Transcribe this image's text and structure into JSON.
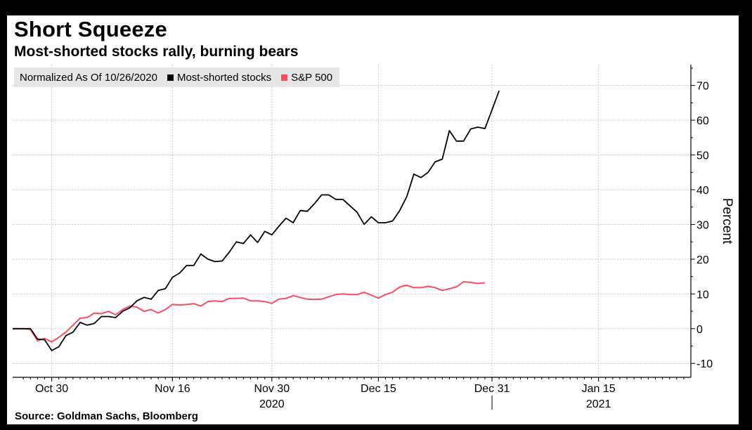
{
  "chart_data": {
    "type": "line",
    "title": "Short Squeeze",
    "subtitle": "Most-shorted stocks rally, burning bears",
    "legend_note": "Normalized As Of 10/26/2020",
    "ylabel": "Percent",
    "ylim": [
      -14,
      76
    ],
    "yticks": [
      -10,
      0,
      10,
      20,
      30,
      40,
      50,
      60,
      70
    ],
    "x_ticks": [
      {
        "day": 4,
        "label": "Oct 30"
      },
      {
        "day": 21,
        "label": "Nov 16"
      },
      {
        "day": 35,
        "label": "Nov 30"
      },
      {
        "day": 50,
        "label": "Dec 15"
      },
      {
        "day": 66,
        "label": "Dec 31"
      },
      {
        "day": 81,
        "label": "Jan 15"
      }
    ],
    "year_labels": [
      {
        "day": 35,
        "label": "2020"
      },
      {
        "day": 81,
        "label": "2021"
      }
    ],
    "year_divider_day": 66,
    "xlim": [
      -1.5,
      94
    ],
    "series": [
      {
        "name": "Most-shorted stocks",
        "color": "#000000",
        "points": [
          [
            -1.5,
            0
          ],
          [
            0,
            0
          ],
          [
            1,
            0
          ],
          [
            2,
            -3
          ],
          [
            3,
            -3.2
          ],
          [
            4,
            -6.3
          ],
          [
            5,
            -5.2
          ],
          [
            6,
            -2
          ],
          [
            7,
            -1
          ],
          [
            8,
            1.8
          ],
          [
            9,
            1
          ],
          [
            10,
            1.5
          ],
          [
            11,
            3.5
          ],
          [
            12,
            3.5
          ],
          [
            13,
            3.2
          ],
          [
            14,
            5
          ],
          [
            15,
            6
          ],
          [
            16,
            8
          ],
          [
            17,
            9
          ],
          [
            18,
            8.5
          ],
          [
            19,
            11
          ],
          [
            20,
            11.5
          ],
          [
            21,
            14.8
          ],
          [
            22,
            16
          ],
          [
            23,
            18.2
          ],
          [
            24,
            18.2
          ],
          [
            25,
            21.5
          ],
          [
            26,
            20
          ],
          [
            27,
            19.3
          ],
          [
            28,
            19.5
          ],
          [
            29,
            22
          ],
          [
            30,
            25
          ],
          [
            31,
            24.5
          ],
          [
            32,
            27
          ],
          [
            33,
            24.8
          ],
          [
            34,
            28
          ],
          [
            35,
            27
          ],
          [
            36,
            29.5
          ],
          [
            37,
            31.8
          ],
          [
            38,
            30.5
          ],
          [
            39,
            34
          ],
          [
            40,
            33.8
          ],
          [
            41,
            36
          ],
          [
            42,
            38.5
          ],
          [
            43,
            38.5
          ],
          [
            44,
            37.2
          ],
          [
            45,
            37.2
          ],
          [
            47,
            33.5
          ],
          [
            48,
            30
          ],
          [
            49,
            32.2
          ],
          [
            50,
            30.5
          ],
          [
            51,
            30.5
          ],
          [
            52,
            31
          ],
          [
            53,
            34
          ],
          [
            54,
            38
          ],
          [
            55,
            44.5
          ],
          [
            56,
            43.5
          ],
          [
            57,
            45
          ],
          [
            58,
            48
          ],
          [
            59,
            48.8
          ],
          [
            60,
            57
          ],
          [
            61,
            54
          ],
          [
            62,
            54
          ],
          [
            63,
            57.5
          ],
          [
            64,
            58
          ],
          [
            65,
            57.6
          ],
          [
            66,
            63
          ],
          [
            67,
            68.5
          ]
        ]
      },
      {
        "name": "S&P 500",
        "color": "#ff4d5f",
        "points": [
          [
            -1.5,
            0
          ],
          [
            0,
            0
          ],
          [
            1,
            -0.2
          ],
          [
            2,
            -3.5
          ],
          [
            3,
            -2.8
          ],
          [
            4,
            -3.8
          ],
          [
            5,
            -2.5
          ],
          [
            6,
            -1
          ],
          [
            7,
            1
          ],
          [
            8,
            3
          ],
          [
            9,
            3.2
          ],
          [
            10,
            4.5
          ],
          [
            11,
            4.3
          ],
          [
            12,
            5
          ],
          [
            13,
            4
          ],
          [
            14,
            5.5
          ],
          [
            15,
            6.5
          ],
          [
            16,
            6.2
          ],
          [
            17,
            5
          ],
          [
            18,
            5.5
          ],
          [
            19,
            4.5
          ],
          [
            20,
            5.5
          ],
          [
            21,
            7
          ],
          [
            22,
            6.8
          ],
          [
            23,
            7
          ],
          [
            24,
            7.2
          ],
          [
            25,
            6.5
          ],
          [
            26,
            7.8
          ],
          [
            27,
            8
          ],
          [
            28,
            7.8
          ],
          [
            29,
            8.7
          ],
          [
            30,
            8.7
          ],
          [
            31,
            8.8
          ],
          [
            32,
            8
          ],
          [
            33,
            8
          ],
          [
            34,
            7.8
          ],
          [
            35,
            7.3
          ],
          [
            36,
            8.5
          ],
          [
            37,
            8.7
          ],
          [
            38,
            9.5
          ],
          [
            39,
            9
          ],
          [
            40,
            8.5
          ],
          [
            41,
            8.4
          ],
          [
            42,
            8.5
          ],
          [
            43,
            9.2
          ],
          [
            44,
            9.8
          ],
          [
            45,
            10
          ],
          [
            46,
            9.8
          ],
          [
            47,
            9.8
          ],
          [
            48,
            10.5
          ],
          [
            50,
            8.8
          ],
          [
            51,
            9.8
          ],
          [
            52,
            10.5
          ],
          [
            53,
            12
          ],
          [
            54,
            12.5
          ],
          [
            55,
            11.8
          ],
          [
            56,
            11.8
          ],
          [
            57,
            12.2
          ],
          [
            58,
            11.8
          ],
          [
            59,
            11
          ],
          [
            60,
            11.5
          ],
          [
            61,
            12
          ],
          [
            62,
            13.5
          ],
          [
            63,
            13.3
          ],
          [
            64,
            13
          ],
          [
            65,
            13.2
          ]
        ]
      }
    ],
    "source": "Source: Goldman Sachs, Bloomberg"
  }
}
